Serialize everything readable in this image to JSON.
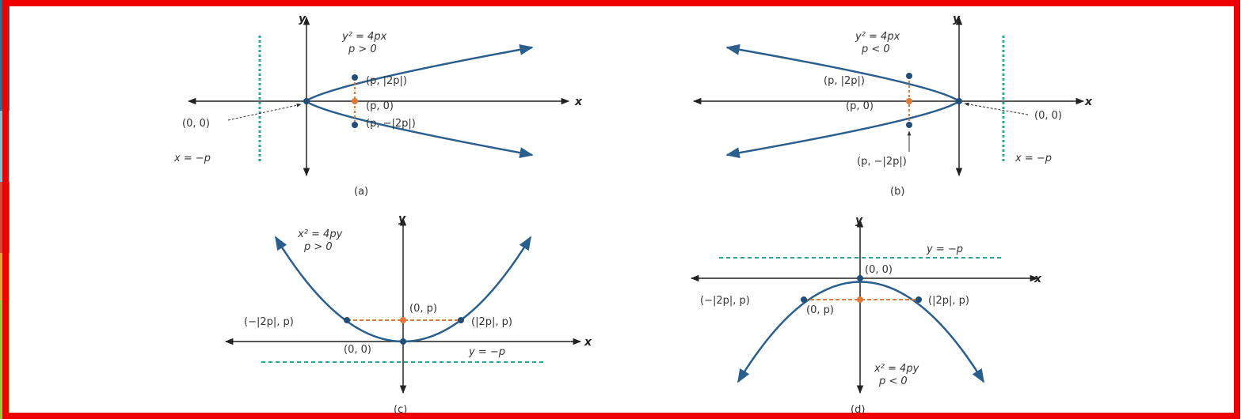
{
  "colors": {
    "frame": "#ee0000",
    "curve": "#2a5e8c",
    "axis": "#222222",
    "focus": "#e0783a",
    "directrix": "#2aa6a2",
    "point": "#1f4e79",
    "text": "#333333",
    "left_strip": [
      "#2c6e94",
      "#7fc6d6",
      "#d34b3b",
      "#e9a23b",
      "#9ccc3c"
    ]
  },
  "axes": {
    "x_label": "x",
    "y_label": "y"
  },
  "panels": [
    {
      "caption": "(a)",
      "equation": "y² = 4px",
      "condition": "p > 0",
      "vertex_label": "(0, 0)",
      "focus_label": "(p, 0)",
      "endpoint_upper_label": "(p, |2p|)",
      "endpoint_lower_label": "(p, −|2p|)",
      "directrix_label": "x = −p"
    },
    {
      "caption": "(b)",
      "equation": "y² = 4px",
      "condition": "p < 0",
      "vertex_label": "(0, 0)",
      "focus_label": "(p, 0)",
      "endpoint_upper_label": "(p, |2p|)",
      "endpoint_lower_label": "(p, −|2p|)",
      "directrix_label": "x = −p"
    },
    {
      "caption": "(c)",
      "equation": "x² = 4py",
      "condition": "p > 0",
      "vertex_label": "(0, 0)",
      "focus_label": "(0, p)",
      "endpoint_left_label": "(−|2p|, p)",
      "endpoint_right_label": "(|2p|, p)",
      "directrix_label": "y = −p"
    },
    {
      "caption": "(d)",
      "equation": "x² = 4py",
      "condition": "p < 0",
      "vertex_label": "(0, 0)",
      "focus_label": "(0, p)",
      "endpoint_left_label": "(−|2p|, p)",
      "endpoint_right_label": "(|2p|, p)",
      "directrix_label": "y = −p"
    }
  ]
}
